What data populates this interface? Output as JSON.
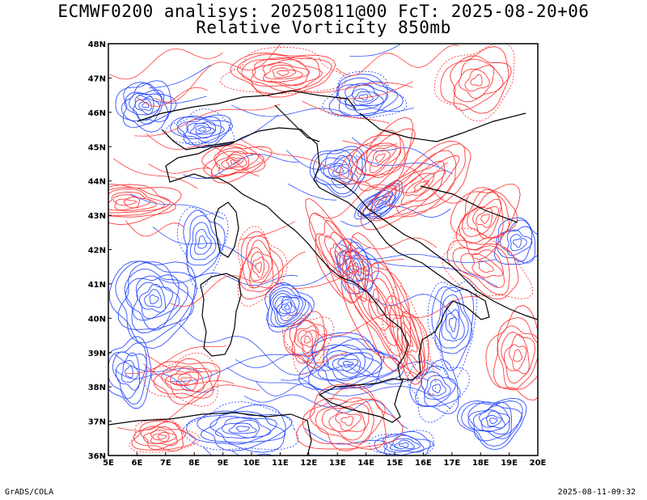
{
  "header": {
    "title_line1": "ECMWF0200 analisys: 20250811@00 FcT: 2025-08-20+06",
    "title_line2": "Relative Vorticity 850mb"
  },
  "map": {
    "lon_labels": [
      "5E",
      "6E",
      "7E",
      "8E",
      "9E",
      "10E",
      "11E",
      "12E",
      "13E",
      "14E",
      "15E",
      "16E",
      "17E",
      "18E",
      "19E",
      "20E"
    ],
    "lat_labels": [
      "48N",
      "47N",
      "46N",
      "45N",
      "44N",
      "43N",
      "42N",
      "41N",
      "40N",
      "39N",
      "38N",
      "37N",
      "36N"
    ],
    "lon_range": [
      5,
      20
    ],
    "lat_range": [
      36,
      48
    ],
    "colors": {
      "positive_contours": "#ff3b3b",
      "negative_contours": "#2f4fff",
      "coastline": "#000000",
      "frame": "#000000"
    }
  },
  "footer": {
    "left": "GrADS/COLA",
    "right": "2025-08-11-09:32"
  }
}
